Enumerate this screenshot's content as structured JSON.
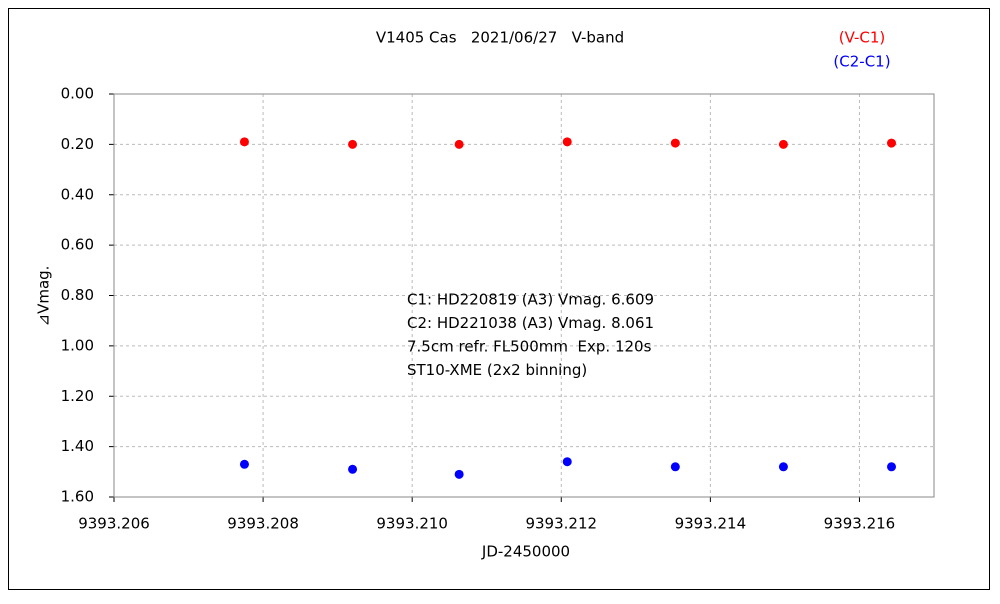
{
  "chart_data": {
    "type": "scatter",
    "title": "V1405 Cas   2021/06/27   V-band",
    "x_label": "JD-2450000",
    "y_label": "⊿Vmag.",
    "annotations": [
      "C1: HD220819 (A3) Vmag. 6.609",
      "C2: HD221038 (A3) Vmag. 8.061",
      "7.5cm refr. FL500mm  Exp. 120s",
      "ST10-XME (2x2 binning)"
    ],
    "x": [
      9393.20775,
      9393.2092,
      9393.21063,
      9393.21208,
      9393.21353,
      9393.21498,
      9393.21643
    ],
    "series": [
      {
        "name": "(V-C1)",
        "color": "#ff0000",
        "values": [
          0.19,
          0.2,
          0.2,
          0.19,
          0.195,
          0.2,
          0.195
        ]
      },
      {
        "name": "(C2-C1)",
        "color": "#0000ff",
        "values": [
          1.47,
          1.49,
          1.51,
          1.46,
          1.48,
          1.48,
          1.48
        ]
      }
    ],
    "xlim": [
      9393.206,
      9393.217
    ],
    "xticks": [
      9393.206,
      9393.208,
      {
        "value": 9393.21,
        "label": "9393.210"
      },
      9393.212,
      9393.214,
      9393.216
    ],
    "ylim": [
      0,
      1.6
    ],
    "y_inverted": true,
    "yticks": [
      {
        "value": 0,
        "label": "0.00"
      },
      {
        "value": 0.2,
        "label": "0.20"
      },
      {
        "value": 0.4,
        "label": "0.40"
      },
      {
        "value": 0.6,
        "label": "0.60"
      },
      {
        "value": 0.8,
        "label": "0.80"
      },
      {
        "value": 1,
        "label": "1.00"
      },
      {
        "value": 1.2,
        "label": "1.20"
      },
      {
        "value": 1.4,
        "label": "1.40"
      },
      {
        "value": 1.6,
        "label": "1.60"
      }
    ],
    "grid": true,
    "legend": "top-right"
  }
}
